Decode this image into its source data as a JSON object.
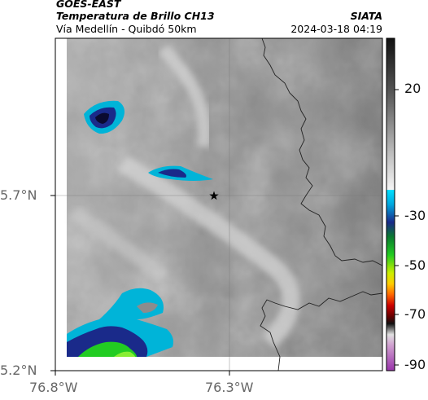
{
  "header": {
    "satellite": "GOES-EAST",
    "product": "Temperatura de Brillo CH13",
    "organization": "SIATA",
    "region": "Vía Medellín - Quibdó 50km",
    "datetime": "2024-03-18 04:19"
  },
  "axes": {
    "lat_labels": [
      "5.7°N",
      "5.2°N"
    ],
    "lon_labels": [
      "76.8°W",
      "76.3°W"
    ]
  },
  "colorbar": {
    "tick_labels": [
      "20",
      "-30",
      "-50",
      "-70",
      "-90"
    ]
  },
  "marker": {
    "name": "star-marker"
  },
  "colors": {
    "cold_cyan": "#00b4d8",
    "cold_blue": "#1a2a8a",
    "cold_green": "#22cc22",
    "border": "#222222"
  }
}
